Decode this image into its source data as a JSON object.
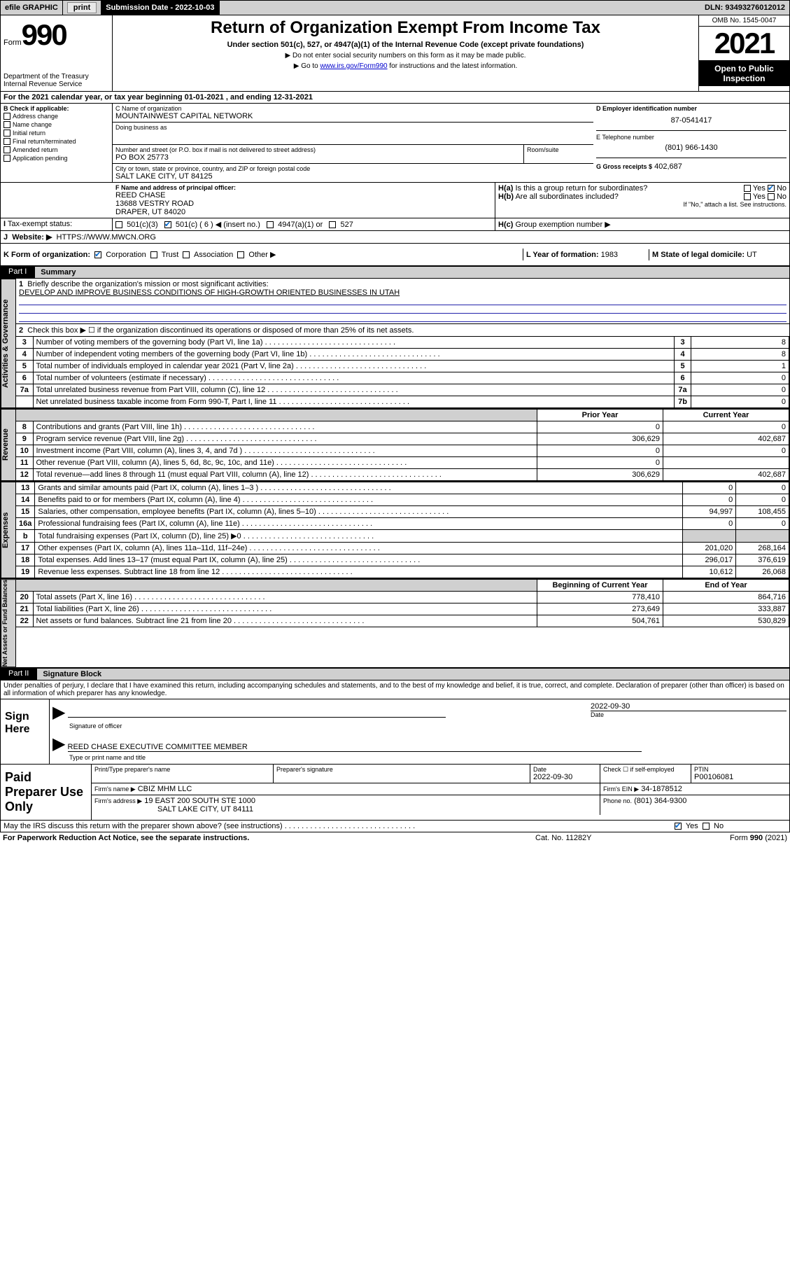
{
  "topbar": {
    "efile": "efile GRAPHIC",
    "print": "print",
    "submission": "Submission Date - 2022-10-03",
    "dln": "DLN: 93493276012012"
  },
  "header": {
    "form_prefix": "Form",
    "form_number": "990",
    "title": "Return of Organization Exempt From Income Tax",
    "subtitle": "Under section 501(c), 527, or 4947(a)(1) of the Internal Revenue Code (except private foundations)",
    "instr1": "▶ Do not enter social security numbers on this form as it may be made public.",
    "instr2_pre": "▶ Go to ",
    "instr2_link": "www.irs.gov/Form990",
    "instr2_post": " for instructions and the latest information.",
    "dept1": "Department of the Treasury",
    "dept2": "Internal Revenue Service",
    "omb": "OMB No. 1545-0047",
    "year": "2021",
    "open1": "Open to Public",
    "open2": "Inspection"
  },
  "lineA": "For the 2021 calendar year, or tax year beginning 01-01-2021   , and ending 12-31-2021",
  "B": {
    "label": "B Check if applicable:",
    "items": [
      "Address change",
      "Name change",
      "Initial return",
      "Final return/terminated",
      "Amended return",
      "Application pending"
    ]
  },
  "C": {
    "name_label": "C Name of organization",
    "name": "MOUNTAINWEST CAPITAL NETWORK",
    "dba_label": "Doing business as",
    "addr_label": "Number and street (or P.O. box if mail is not delivered to street address)",
    "room_label": "Room/suite",
    "addr": "PO BOX 25773",
    "city_label": "City or town, state or province, country, and ZIP or foreign postal code",
    "city": "SALT LAKE CITY, UT  84125"
  },
  "D": {
    "label": "D Employer identification number",
    "ein": "87-0541417"
  },
  "E": {
    "label": "E Telephone number",
    "phone": "(801) 966-1430"
  },
  "G": {
    "label": "G Gross receipts $",
    "amount": "402,687"
  },
  "F": {
    "label": "F  Name and address of principal officer:",
    "name": "REED CHASE",
    "addr1": "13688 VESTRY ROAD",
    "addr2": "DRAPER, UT  84020"
  },
  "H": {
    "a": "Is this a group return for subordinates?",
    "b": "Are all subordinates included?",
    "note": "If \"No,\" attach a list. See instructions.",
    "c": "Group exemption number ▶",
    "yes": "Yes",
    "no": "No"
  },
  "I": {
    "label": "Tax-exempt status:",
    "opt1": "501(c)(3)",
    "opt2": "501(c) ( 6 ) ◀ (insert no.)",
    "opt3": "4947(a)(1) or",
    "opt4": "527"
  },
  "J": {
    "label": "Website: ▶",
    "url": "HTTPS://WWW.MWCN.ORG"
  },
  "K": {
    "label": "K Form of organization:",
    "opts": [
      "Corporation",
      "Trust",
      "Association",
      "Other ▶"
    ]
  },
  "L": {
    "label": "L Year of formation:",
    "val": "1983"
  },
  "M": {
    "label": "M State of legal domicile:",
    "val": "UT"
  },
  "part1": {
    "title": "Part I",
    "label": "Summary",
    "line1_label": "Briefly describe the organization's mission or most significant activities:",
    "mission": "DEVELOP AND IMPROVE BUSINESS CONDITIONS OF HIGH-GROWTH ORIENTED BUSINESSES IN UTAH",
    "line2": "Check this box ▶ ☐  if the organization discontinued its operations or disposed of more than 25% of its net assets.",
    "tabs": {
      "gov": "Activities & Governance",
      "rev": "Revenue",
      "exp": "Expenses",
      "net": "Net Assets or Fund Balances"
    },
    "gov_rows": [
      {
        "n": "3",
        "t": "Number of voting members of the governing body (Part VI, line 1a)",
        "box": "3",
        "v": "8"
      },
      {
        "n": "4",
        "t": "Number of independent voting members of the governing body (Part VI, line 1b)",
        "box": "4",
        "v": "8"
      },
      {
        "n": "5",
        "t": "Total number of individuals employed in calendar year 2021 (Part V, line 2a)",
        "box": "5",
        "v": "1"
      },
      {
        "n": "6",
        "t": "Total number of volunteers (estimate if necessary)",
        "box": "6",
        "v": "0"
      },
      {
        "n": "7a",
        "t": "Total unrelated business revenue from Part VIII, column (C), line 12",
        "box": "7a",
        "v": "0"
      },
      {
        "n": "",
        "t": "Net unrelated business taxable income from Form 990-T, Part I, line 11",
        "box": "7b",
        "v": "0"
      }
    ],
    "col_prior": "Prior Year",
    "col_current": "Current Year",
    "rev_rows": [
      {
        "n": "8",
        "t": "Contributions and grants (Part VIII, line 1h)",
        "p": "0",
        "c": "0"
      },
      {
        "n": "9",
        "t": "Program service revenue (Part VIII, line 2g)",
        "p": "306,629",
        "c": "402,687"
      },
      {
        "n": "10",
        "t": "Investment income (Part VIII, column (A), lines 3, 4, and 7d )",
        "p": "0",
        "c": "0"
      },
      {
        "n": "11",
        "t": "Other revenue (Part VIII, column (A), lines 5, 6d, 8c, 9c, 10c, and 11e)",
        "p": "0",
        "c": ""
      },
      {
        "n": "12",
        "t": "Total revenue—add lines 8 through 11 (must equal Part VIII, column (A), line 12)",
        "p": "306,629",
        "c": "402,687"
      }
    ],
    "exp_rows": [
      {
        "n": "13",
        "t": "Grants and similar amounts paid (Part IX, column (A), lines 1–3 )",
        "p": "0",
        "c": "0"
      },
      {
        "n": "14",
        "t": "Benefits paid to or for members (Part IX, column (A), line 4)",
        "p": "0",
        "c": "0"
      },
      {
        "n": "15",
        "t": "Salaries, other compensation, employee benefits (Part IX, column (A), lines 5–10)",
        "p": "94,997",
        "c": "108,455"
      },
      {
        "n": "16a",
        "t": "Professional fundraising fees (Part IX, column (A), line 11e)",
        "p": "0",
        "c": "0"
      },
      {
        "n": "b",
        "t": "Total fundraising expenses (Part IX, column (D), line 25) ▶0",
        "p": "",
        "c": "",
        "shade": true
      },
      {
        "n": "17",
        "t": "Other expenses (Part IX, column (A), lines 11a–11d, 11f–24e)",
        "p": "201,020",
        "c": "268,164"
      },
      {
        "n": "18",
        "t": "Total expenses. Add lines 13–17 (must equal Part IX, column (A), line 25)",
        "p": "296,017",
        "c": "376,619"
      },
      {
        "n": "19",
        "t": "Revenue less expenses. Subtract line 18 from line 12",
        "p": "10,612",
        "c": "26,068"
      }
    ],
    "col_begin": "Beginning of Current Year",
    "col_end": "End of Year",
    "net_rows": [
      {
        "n": "20",
        "t": "Total assets (Part X, line 16)",
        "p": "778,410",
        "c": "864,716"
      },
      {
        "n": "21",
        "t": "Total liabilities (Part X, line 26)",
        "p": "273,649",
        "c": "333,887"
      },
      {
        "n": "22",
        "t": "Net assets or fund balances. Subtract line 21 from line 20",
        "p": "504,761",
        "c": "530,829"
      }
    ]
  },
  "part2": {
    "title": "Part II",
    "label": "Signature Block",
    "penalty": "Under penalties of perjury, I declare that I have examined this return, including accompanying schedules and statements, and to the best of my knowledge and belief, it is true, correct, and complete. Declaration of preparer (other than officer) is based on all information of which preparer has any knowledge.",
    "sign_here": "Sign Here",
    "sig_label": "Signature of officer",
    "date_label": "Date",
    "sig_date": "2022-09-30",
    "officer": "REED CHASE  EXECUTIVE COMMITTEE MEMBER",
    "officer_label": "Type or print name and title",
    "paid": "Paid Preparer Use Only",
    "prep_name_label": "Print/Type preparer's name",
    "prep_sig_label": "Preparer's signature",
    "prep_date_label": "Date",
    "prep_date": "2022-09-30",
    "check_label": "Check ☐ if self-employed",
    "ptin_label": "PTIN",
    "ptin": "P00106081",
    "firm_name_label": "Firm's name    ▶",
    "firm_name": "CBIZ MHM LLC",
    "firm_ein_label": "Firm's EIN ▶",
    "firm_ein": "34-1878512",
    "firm_addr_label": "Firm's address ▶",
    "firm_addr1": "19 EAST 200 SOUTH STE 1000",
    "firm_addr2": "SALT LAKE CITY, UT  84111",
    "firm_phone_label": "Phone no.",
    "firm_phone": "(801) 364-9300",
    "discuss": "May the IRS discuss this return with the preparer shown above? (see instructions)",
    "yes": "Yes",
    "no": "No"
  },
  "footer": {
    "left": "For Paperwork Reduction Act Notice, see the separate instructions.",
    "mid": "Cat. No. 11282Y",
    "right": "Form 990 (2021)"
  },
  "colors": {
    "link": "#0000cc",
    "check": "#0066cc",
    "shade": "#d0d0d0",
    "uline": "#2222aa"
  }
}
